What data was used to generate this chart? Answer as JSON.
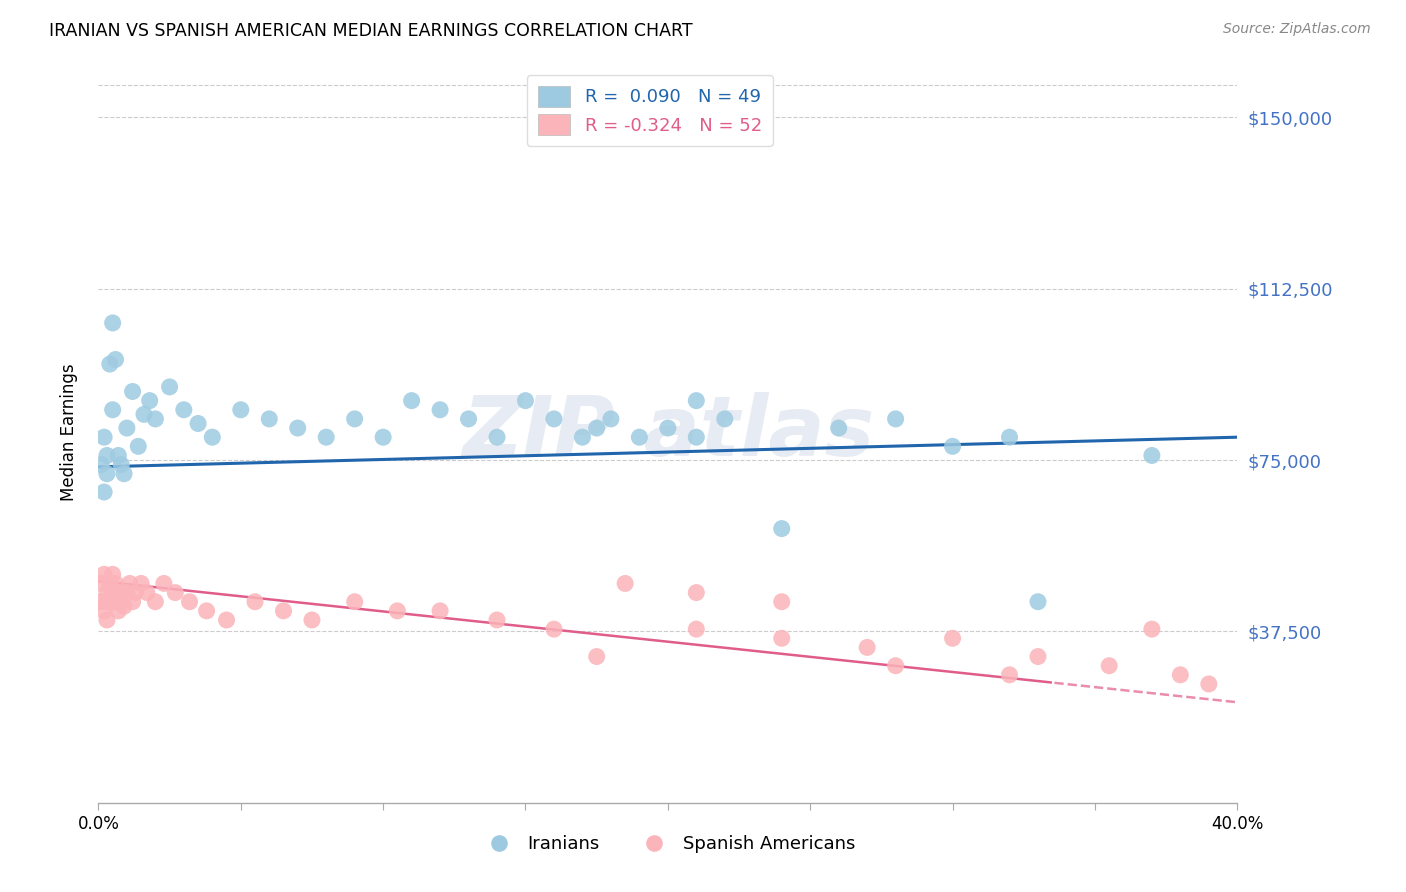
{
  "title": "IRANIAN VS SPANISH AMERICAN MEDIAN EARNINGS CORRELATION CHART",
  "source": "Source: ZipAtlas.com",
  "ylabel": "Median Earnings",
  "watermark": "ZIPatlas",
  "x_min": 0.0,
  "x_max": 0.4,
  "y_min": 0,
  "y_max": 162000,
  "y_ticks": [
    0,
    37500,
    75000,
    112500,
    150000
  ],
  "y_tick_labels": [
    "",
    "$37,500",
    "$75,000",
    "$112,500",
    "$150,000"
  ],
  "x_ticks": [
    0.0,
    0.05,
    0.1,
    0.15,
    0.2,
    0.25,
    0.3,
    0.35,
    0.4
  ],
  "iranians_color": "#9ecae1",
  "spanish_color": "#fbb4b9",
  "trend_blue": "#2166ac",
  "trend_pink": "#e05c8a",
  "legend_color_blue": "#2166ac",
  "legend_color_pink": "#e05c8a",
  "iranians_R": 0.09,
  "iranians_N": 49,
  "spanish_R": -0.324,
  "spanish_N": 52,
  "iranians_x": [
    0.001,
    0.002,
    0.002,
    0.003,
    0.003,
    0.004,
    0.005,
    0.005,
    0.006,
    0.007,
    0.008,
    0.009,
    0.01,
    0.012,
    0.014,
    0.016,
    0.018,
    0.02,
    0.025,
    0.03,
    0.035,
    0.04,
    0.05,
    0.06,
    0.07,
    0.08,
    0.09,
    0.1,
    0.11,
    0.12,
    0.13,
    0.14,
    0.15,
    0.16,
    0.17,
    0.18,
    0.19,
    0.2,
    0.21,
    0.22,
    0.24,
    0.26,
    0.28,
    0.3,
    0.32,
    0.21,
    0.175,
    0.33,
    0.37
  ],
  "iranians_y": [
    74000,
    68000,
    80000,
    72000,
    76000,
    96000,
    105000,
    86000,
    97000,
    76000,
    74000,
    72000,
    82000,
    90000,
    78000,
    85000,
    88000,
    84000,
    91000,
    86000,
    83000,
    80000,
    86000,
    84000,
    82000,
    80000,
    84000,
    80000,
    88000,
    86000,
    84000,
    80000,
    88000,
    84000,
    80000,
    84000,
    80000,
    82000,
    88000,
    84000,
    60000,
    82000,
    84000,
    78000,
    80000,
    80000,
    82000,
    44000,
    76000
  ],
  "spanish_x": [
    0.001,
    0.001,
    0.002,
    0.002,
    0.003,
    0.003,
    0.003,
    0.004,
    0.004,
    0.005,
    0.005,
    0.006,
    0.006,
    0.007,
    0.007,
    0.008,
    0.009,
    0.01,
    0.011,
    0.012,
    0.013,
    0.015,
    0.017,
    0.02,
    0.023,
    0.027,
    0.032,
    0.038,
    0.045,
    0.055,
    0.065,
    0.075,
    0.09,
    0.105,
    0.12,
    0.14,
    0.16,
    0.185,
    0.21,
    0.24,
    0.27,
    0.3,
    0.33,
    0.355,
    0.37,
    0.38,
    0.39,
    0.21,
    0.24,
    0.175,
    0.28,
    0.32
  ],
  "spanish_y": [
    48000,
    44000,
    50000,
    42000,
    46000,
    44000,
    40000,
    48000,
    44000,
    50000,
    46000,
    48000,
    44000,
    42000,
    46000,
    44000,
    43000,
    46000,
    48000,
    44000,
    46000,
    48000,
    46000,
    44000,
    48000,
    46000,
    44000,
    42000,
    40000,
    44000,
    42000,
    40000,
    44000,
    42000,
    42000,
    40000,
    38000,
    48000,
    38000,
    36000,
    34000,
    36000,
    32000,
    30000,
    38000,
    28000,
    26000,
    46000,
    44000,
    32000,
    30000,
    28000
  ]
}
